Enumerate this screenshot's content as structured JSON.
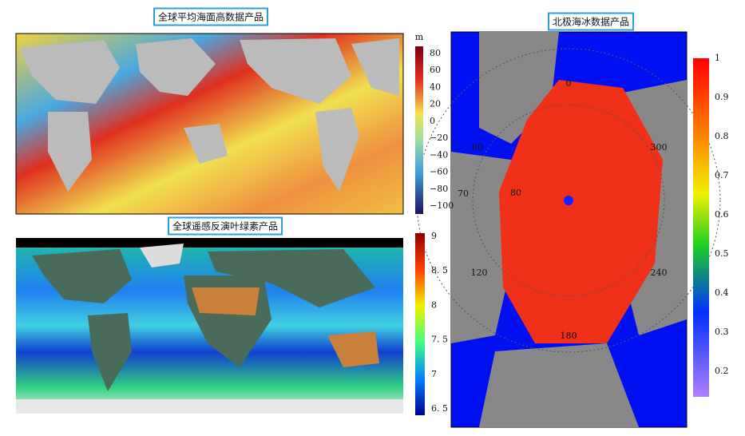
{
  "panels": [
    {
      "title": "全球平均海面高数据产品",
      "colorbar": {
        "unit": "m",
        "ticks": [
          "80",
          "60",
          "40",
          "20",
          "0",
          "−20",
          "−40",
          "−60",
          "−80",
          "−100"
        ]
      }
    },
    {
      "title": "全球遥感反演叶绿素产品",
      "colorbar": {
        "ticks": [
          "9",
          "8. 5",
          "8",
          "7. 5",
          "7",
          "6. 5"
        ]
      }
    },
    {
      "title": "北极海冰数据产品",
      "colorbar": {
        "ticks": [
          "1",
          "0.9",
          "0.8",
          "0.7",
          "0.6",
          "0.5",
          "0.4",
          "0.3",
          "0.2"
        ]
      },
      "map_labels": [
        "0",
        "60",
        "70",
        "80",
        "120",
        "180",
        "240",
        "300"
      ]
    }
  ]
}
